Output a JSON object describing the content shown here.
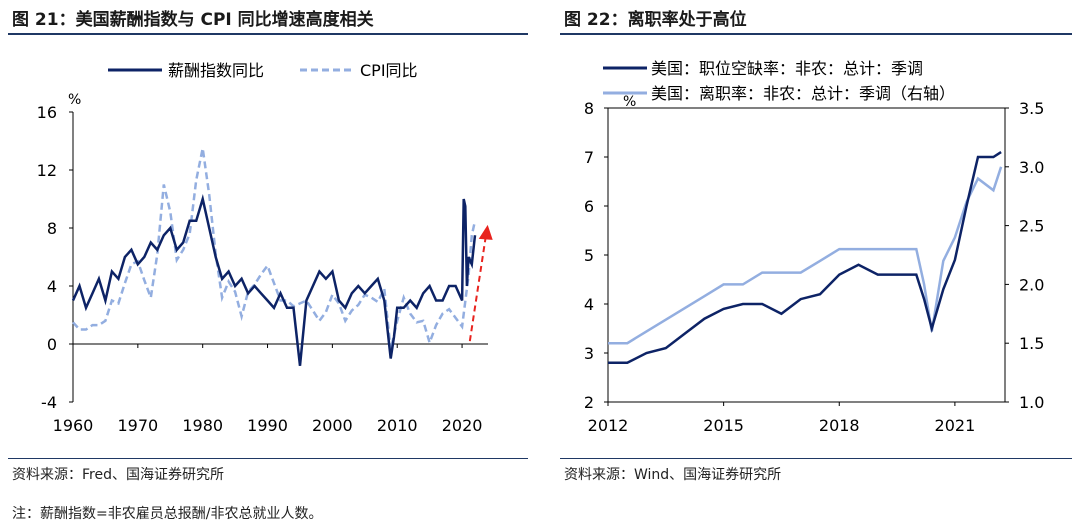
{
  "left": {
    "title": "图 21：美国薪酬指数与 CPI 同比增速高度相关",
    "source": "资料来源：Fred、国海证券研究所"
  },
  "right": {
    "title": "图 22：离职率处于高位",
    "source": "资料来源：Wind、国海证券研究所"
  },
  "note": "注：薪酬指数=非农雇员总报酬/非农总就业人数。",
  "colors": {
    "dark": "#0d2366",
    "light": "#93aee0",
    "arrow": "#e8231e",
    "rule": "#1f3864"
  },
  "chart_data": [
    {
      "type": "line",
      "ylabel": "%",
      "ylim": [
        -4,
        16
      ],
      "yticks": [
        -4,
        0,
        4,
        8,
        12,
        16
      ],
      "xlim": [
        1960,
        2024
      ],
      "xticks": [
        1960,
        1970,
        1980,
        1990,
        2000,
        2010,
        2020
      ],
      "legend_position": "top",
      "annotation": "red dashed upward arrow near 2021",
      "series": [
        {
          "name": "薪酬指数同比",
          "style": "solid",
          "x": [
            1960,
            1961,
            1962,
            1963,
            1964,
            1965,
            1966,
            1967,
            1968,
            1969,
            1970,
            1971,
            1972,
            1973,
            1974,
            1975,
            1976,
            1977,
            1978,
            1979,
            1980,
            1981,
            1982,
            1983,
            1984,
            1985,
            1986,
            1987,
            1988,
            1989,
            1990,
            1991,
            1992,
            1993,
            1994,
            1995,
            1996,
            1997,
            1998,
            1999,
            2000,
            2001,
            2002,
            2003,
            2004,
            2005,
            2006,
            2007,
            2008,
            2009,
            2009.5,
            2010,
            2011,
            2012,
            2013,
            2014,
            2015,
            2016,
            2017,
            2018,
            2019,
            2020,
            2020.25,
            2020.5,
            2020.75,
            2021,
            2021.5,
            2022
          ],
          "values": [
            3,
            4,
            2.5,
            3.5,
            4.5,
            3,
            5,
            4.5,
            6,
            6.5,
            5.5,
            6,
            7,
            6.5,
            7.5,
            8,
            6.5,
            7,
            8.5,
            8.5,
            10,
            8,
            6,
            4.5,
            5,
            4,
            4.5,
            3.5,
            4,
            3.5,
            3,
            2.5,
            3.5,
            2.5,
            2.5,
            -1.5,
            3,
            4,
            5,
            4.5,
            5,
            3,
            2.5,
            3.5,
            4,
            3.5,
            4,
            4.5,
            3,
            -1,
            0.5,
            2.5,
            2.5,
            3,
            2.5,
            3.5,
            4,
            3,
            3,
            4,
            4,
            3,
            10,
            9.5,
            4,
            6,
            5.5,
            7.5
          ]
        },
        {
          "name": "CPI同比",
          "style": "dashed",
          "x": [
            1960,
            1961,
            1962,
            1963,
            1964,
            1965,
            1966,
            1967,
            1968,
            1969,
            1970,
            1971,
            1972,
            1973,
            1974,
            1975,
            1976,
            1977,
            1978,
            1979,
            1980,
            1981,
            1982,
            1983,
            1984,
            1985,
            1986,
            1987,
            1988,
            1989,
            1990,
            1991,
            1992,
            1993,
            1994,
            1995,
            1996,
            1997,
            1998,
            1999,
            2000,
            2001,
            2002,
            2003,
            2004,
            2005,
            2006,
            2007,
            2008,
            2009,
            2010,
            2011,
            2012,
            2013,
            2014,
            2015,
            2016,
            2017,
            2018,
            2019,
            2020,
            2021,
            2021.5,
            2022
          ],
          "values": [
            1.5,
            1,
            1,
            1.3,
            1.3,
            1.6,
            3,
            2.8,
            4.2,
            5.5,
            5.7,
            4.4,
            3.2,
            6.2,
            11,
            9.1,
            5.8,
            6.5,
            7.6,
            11.3,
            13.5,
            10.3,
            6.2,
            3.2,
            4.3,
            3.6,
            1.9,
            3.6,
            4.1,
            4.8,
            5.4,
            4.2,
            3,
            3,
            2.6,
            2.8,
            3,
            2.3,
            1.6,
            2.2,
            3.4,
            2.8,
            1.6,
            2.3,
            2.7,
            3.4,
            3.2,
            2.9,
            3.8,
            -0.4,
            1.6,
            3.2,
            2.1,
            1.5,
            1.6,
            0.1,
            1.3,
            2.1,
            2.4,
            1.8,
            1.2,
            4.7,
            7.5,
            8.5
          ]
        }
      ]
    },
    {
      "type": "line",
      "ylabel": "%",
      "ylim": [
        2,
        8
      ],
      "yticks": [
        2,
        3,
        4,
        5,
        6,
        7,
        8
      ],
      "y2lim": [
        1.0,
        3.5
      ],
      "y2ticks": [
        "1.0",
        "1.5",
        "2.0",
        "2.5",
        "3.0",
        "3.5"
      ],
      "xlim": [
        2012,
        2022.3
      ],
      "xticks": [
        2012,
        2015,
        2018,
        2021
      ],
      "legend_position": "top-left",
      "series": [
        {
          "name": "美国：职位空缺率：非农：总计：季调",
          "axis": "left",
          "x": [
            2012,
            2012.5,
            2013,
            2013.5,
            2014,
            2014.5,
            2015,
            2015.5,
            2016,
            2016.5,
            2017,
            2017.5,
            2018,
            2018.5,
            2019,
            2019.5,
            2020,
            2020.2,
            2020.4,
            2020.7,
            2021,
            2021.3,
            2021.6,
            2022,
            2022.2
          ],
          "values": [
            2.8,
            2.8,
            3.0,
            3.1,
            3.4,
            3.7,
            3.9,
            4.0,
            4.0,
            3.8,
            4.1,
            4.2,
            4.6,
            4.8,
            4.6,
            4.6,
            4.6,
            4.1,
            3.5,
            4.3,
            4.9,
            6.0,
            7.0,
            7.0,
            7.1
          ]
        },
        {
          "name": "美国：离职率：非农：总计：季调（右轴）",
          "axis": "right",
          "x": [
            2012,
            2012.5,
            2013,
            2013.5,
            2014,
            2014.5,
            2015,
            2015.5,
            2016,
            2016.5,
            2017,
            2017.5,
            2018,
            2018.5,
            2019,
            2019.5,
            2020,
            2020.2,
            2020.4,
            2020.7,
            2021,
            2021.3,
            2021.6,
            2022,
            2022.2
          ],
          "values": [
            1.5,
            1.5,
            1.6,
            1.7,
            1.8,
            1.9,
            2.0,
            2.0,
            2.1,
            2.1,
            2.1,
            2.2,
            2.3,
            2.3,
            2.3,
            2.3,
            2.3,
            2.0,
            1.6,
            2.2,
            2.4,
            2.7,
            2.9,
            2.8,
            3.0
          ]
        }
      ]
    }
  ]
}
